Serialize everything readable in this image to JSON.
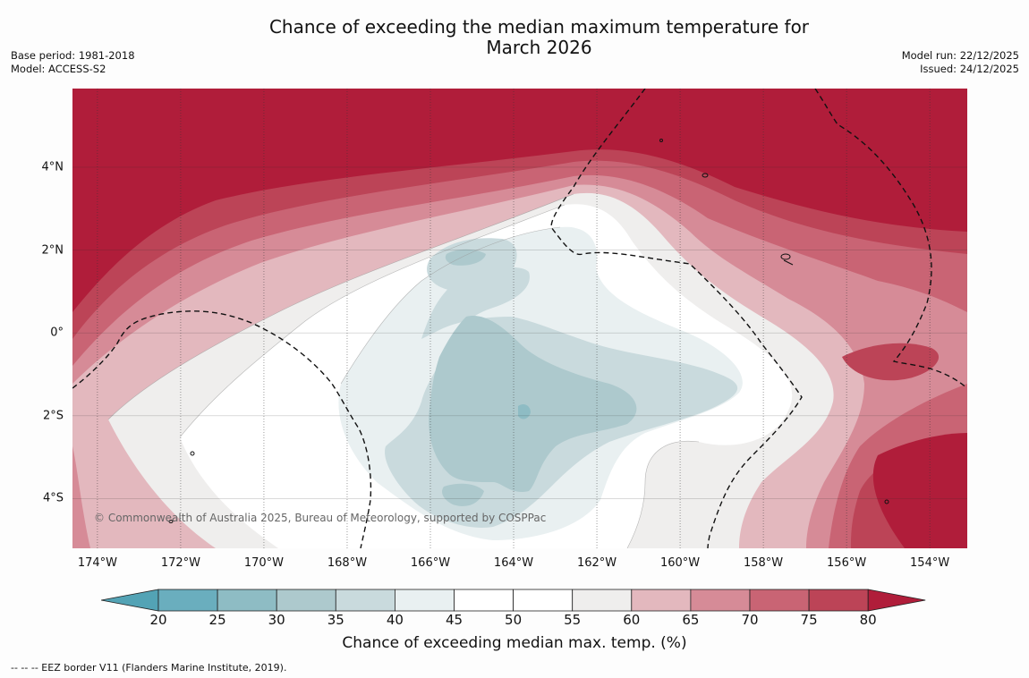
{
  "title_line1": "Chance of exceeding the median maximum temperature for",
  "title_line2": "March 2026",
  "meta_left": {
    "base_period": "Base period: 1981-2018",
    "model": "Model: ACCESS-S2"
  },
  "meta_right": {
    "model_run": "Model run: 22/12/2025",
    "issued": "Issued: 24/12/2025"
  },
  "map": {
    "lat_labels": [
      "4°N",
      "2°N",
      "0°",
      "2°S",
      "4°S"
    ],
    "lat_values": [
      4,
      2,
      0,
      -2,
      -4
    ],
    "lat_range": [
      -5.2,
      5.9
    ],
    "lon_labels": [
      "174°W",
      "172°W",
      "170°W",
      "168°W",
      "166°W",
      "164°W",
      "162°W",
      "160°W",
      "158°W",
      "156°W",
      "154°W"
    ],
    "lon_values": [
      -174,
      -172,
      -170,
      -168,
      -166,
      -164,
      -162,
      -160,
      -158,
      -156,
      -154
    ],
    "lon_range": [
      -174.6,
      -153.1
    ],
    "copyright": "© Commonwealth of Australia 2025, Bureau of Meteorology, supported by COSPPac",
    "field_description": "Warm anomaly (>80%) across the northern band, cool core (20-35%) centred near 164-165°W, 1-2°S, warming toward the south-east corner"
  },
  "colorbar": {
    "ticks": [
      "20",
      "25",
      "30",
      "35",
      "40",
      "45",
      "50",
      "55",
      "60",
      "65",
      "70",
      "75",
      "80"
    ],
    "colors": [
      "#53a3b5",
      "#6aaebe",
      "#8ebcc4",
      "#adc9cd",
      "#c9dadd",
      "#e9f0f1",
      "#ffffff",
      "#ffffff",
      "#efeeed",
      "#e3b8be",
      "#d68b97",
      "#c96474",
      "#bc4457",
      "#b01d3a"
    ],
    "label": "Chance of exceeding median max. temp. (%)"
  },
  "footer": "-- -- -- EEZ border V11 (Flanders Marine Institute, 2019)."
}
